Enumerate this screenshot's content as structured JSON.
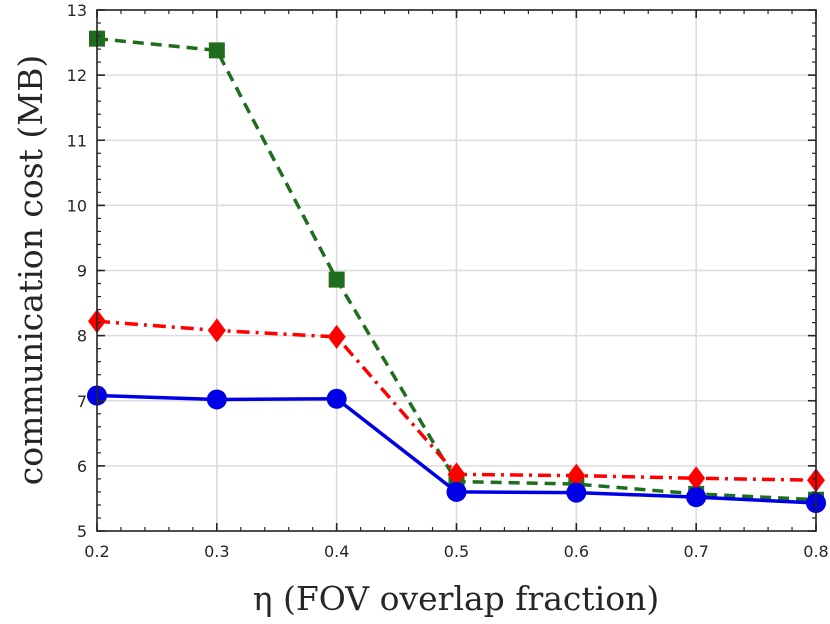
{
  "chart_data": {
    "type": "line",
    "title": "",
    "xlabel": "η (FOV overlap fraction)",
    "ylabel": "communication cost (MB)",
    "xlim": [
      0.2,
      0.8
    ],
    "ylim": [
      5,
      13
    ],
    "xticks": [
      "0.2",
      "0.3",
      "0.4",
      "0.5",
      "0.6",
      "0.7",
      "0.8"
    ],
    "yticks": [
      "5",
      "6",
      "7",
      "8",
      "9",
      "10",
      "11",
      "12",
      "13"
    ],
    "grid": true,
    "legend": "none",
    "x": [
      0.2,
      0.3,
      0.4,
      0.5,
      0.6,
      0.7,
      0.8
    ],
    "series": [
      {
        "name": "green dashed squares",
        "color": "#1e6e1e",
        "line": "dashed",
        "marker": "square",
        "values": [
          12.56,
          12.38,
          8.86,
          5.76,
          5.72,
          5.57,
          5.48
        ]
      },
      {
        "name": "red dash-dot diamonds",
        "color": "#ff0000",
        "line": "dashdot",
        "marker": "diamond",
        "values": [
          8.22,
          8.08,
          7.98,
          5.87,
          5.85,
          5.81,
          5.78
        ]
      },
      {
        "name": "blue solid circles",
        "color": "#0000e6",
        "line": "solid",
        "marker": "circle",
        "values": [
          7.08,
          7.02,
          7.03,
          5.6,
          5.59,
          5.52,
          5.43
        ]
      }
    ]
  }
}
